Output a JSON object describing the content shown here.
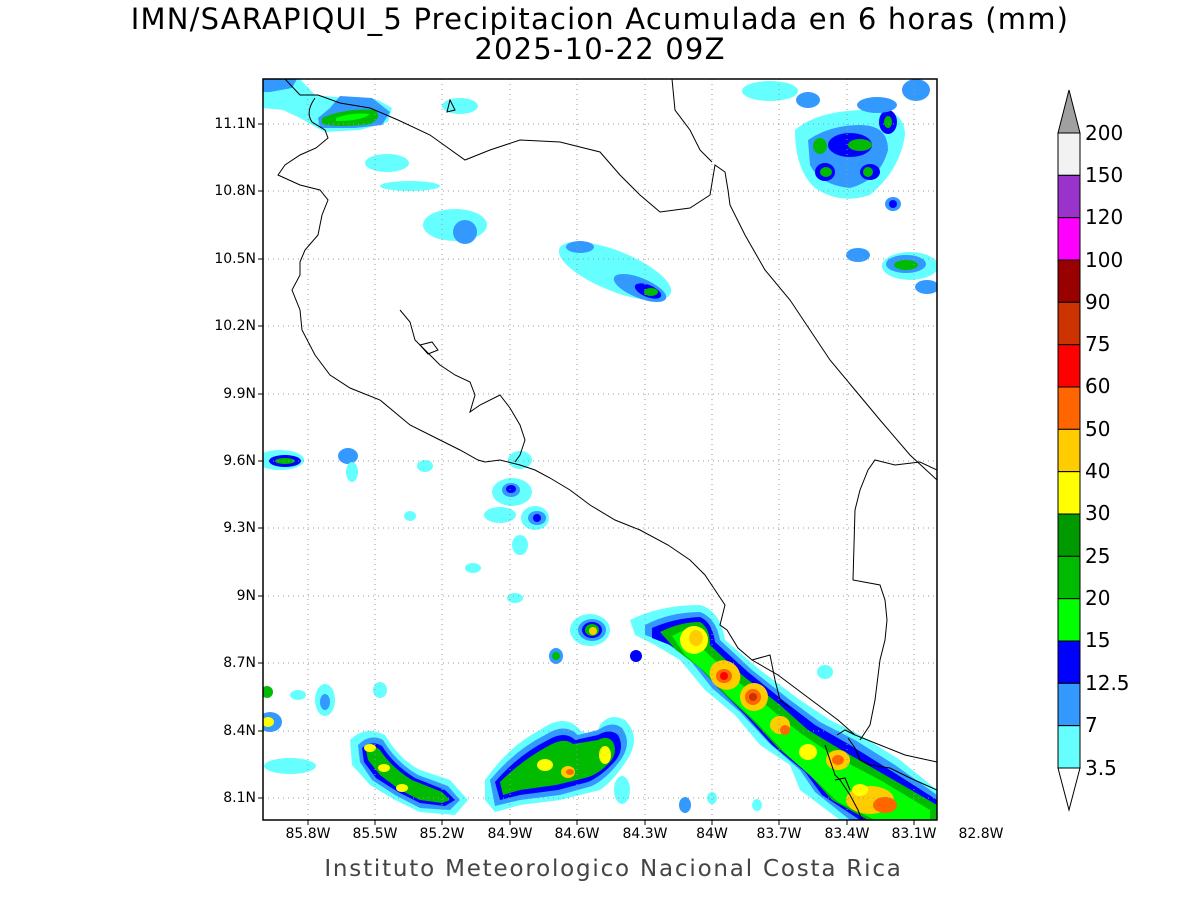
{
  "title": {
    "line1": "IMN/SARAPIQUI_5 Precipitacion Acumulada en 6 horas (mm)",
    "line2": "2025-10-22 09Z"
  },
  "footer": "Instituto Meteorologico Nacional Costa Rica",
  "axes": {
    "lat_labels": [
      "11.1N",
      "10.8N",
      "10.5N",
      "10.2N",
      "9.9N",
      "9.6N",
      "9.3N",
      "9N",
      "8.7N",
      "8.4N",
      "8.1N"
    ],
    "lon_labels": [
      "85.8W",
      "85.5W",
      "85.2W",
      "84.9W",
      "84.6W",
      "84.3W",
      "84W",
      "83.7W",
      "83.4W",
      "83.1W",
      "82.8W"
    ]
  },
  "colorbar": {
    "labels": [
      "200",
      "150",
      "120",
      "100",
      "90",
      "75",
      "60",
      "50",
      "40",
      "30",
      "25",
      "20",
      "15",
      "12.5",
      "7",
      "3.5"
    ],
    "colors": [
      "#f2f2f2",
      "#9933cc",
      "#ff00ff",
      "#990000",
      "#cc3300",
      "#ff0000",
      "#ff6600",
      "#ffcc00",
      "#ffff00",
      "#009900",
      "#00bb00",
      "#00ff00",
      "#0000ff",
      "#3399ff",
      "#66ffff"
    ],
    "top_arrow_color": "#a0a0a0",
    "bottom_arrow_color": "#ffffff"
  },
  "palette": {
    "coast": "#000000",
    "grid": "#999999"
  }
}
